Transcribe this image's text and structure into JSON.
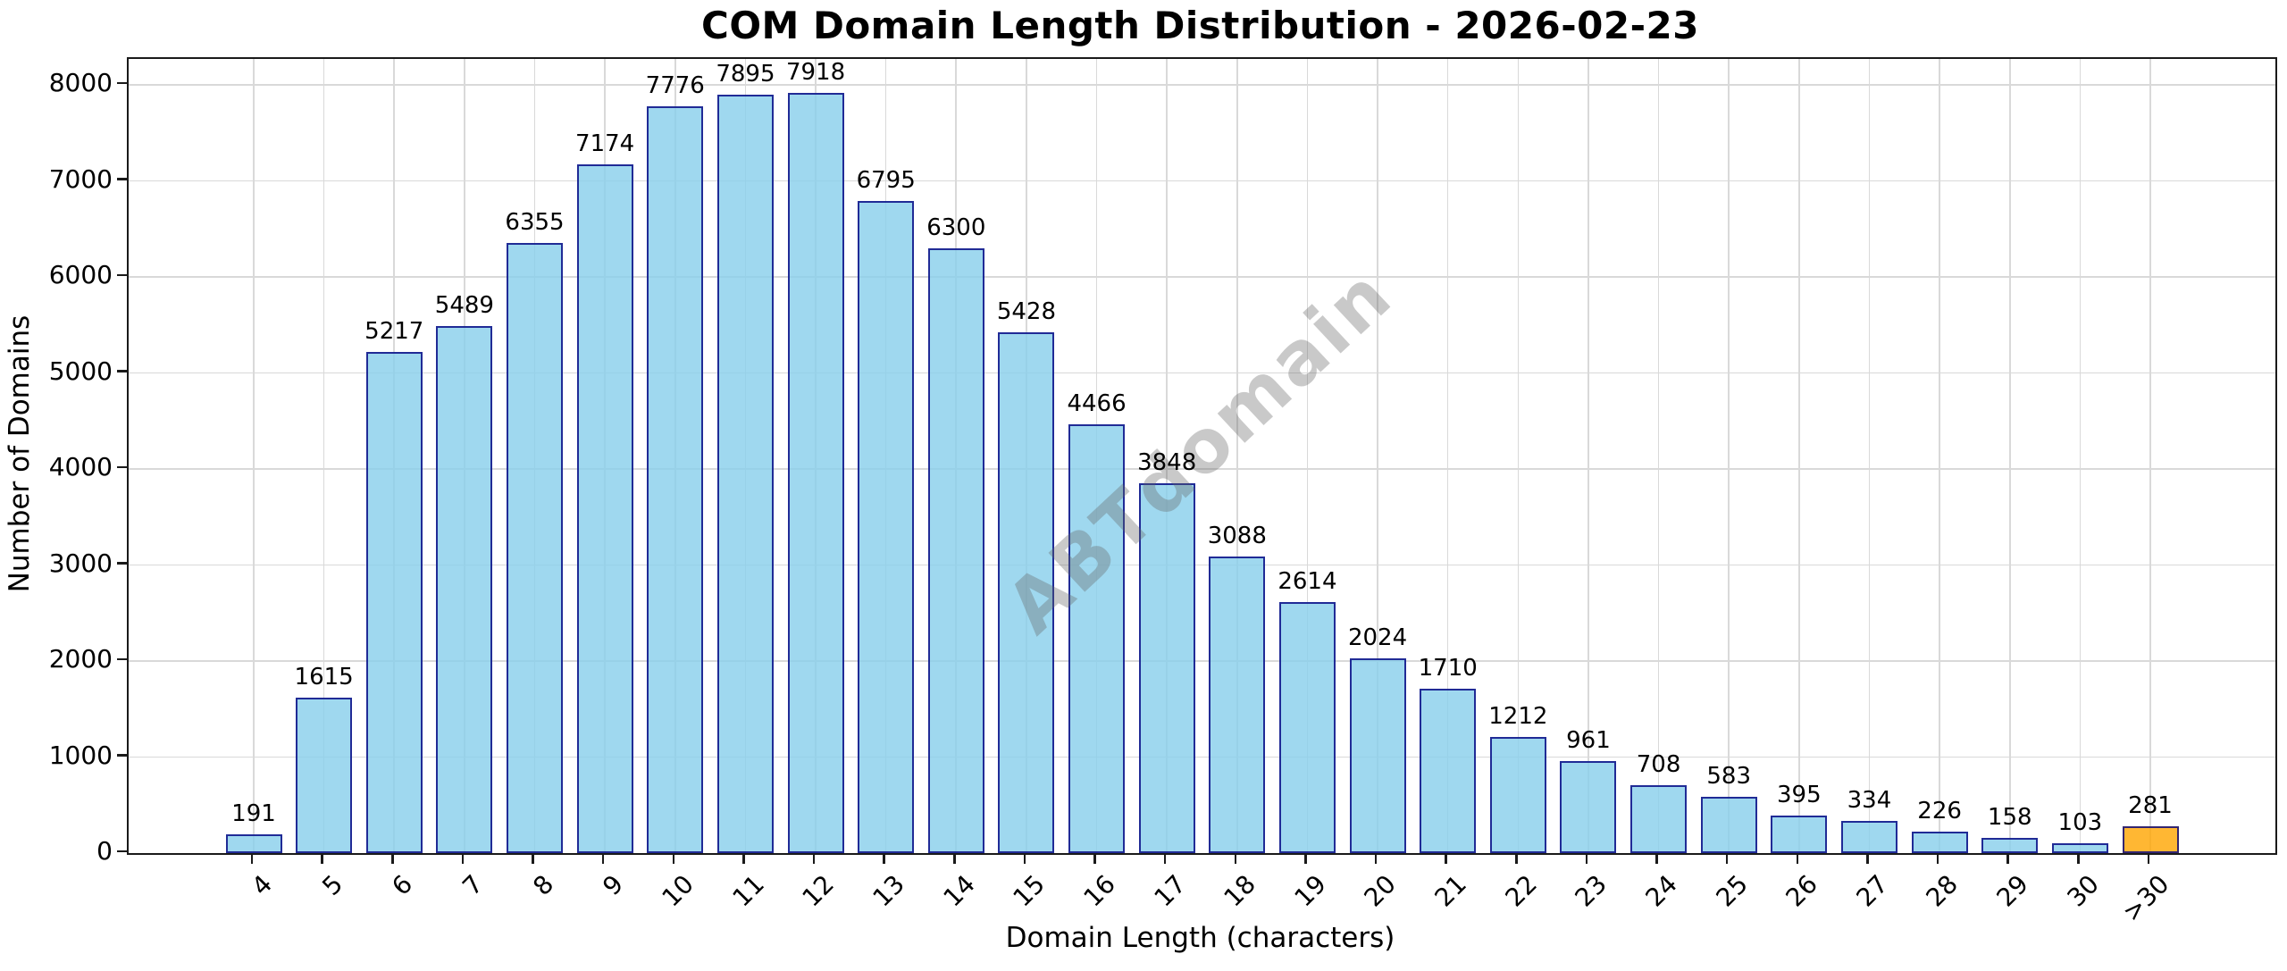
{
  "title": "COM Domain Length Distribution - 2026-02-23",
  "watermark": "ABTdomain",
  "chart_data": {
    "type": "bar",
    "title": "COM Domain Length Distribution - 2026-02-23",
    "xlabel": "Domain Length (characters)",
    "ylabel": "Number of Domains",
    "categories": [
      "4",
      "5",
      "6",
      "7",
      "8",
      "9",
      "10",
      "11",
      "12",
      "13",
      "14",
      "15",
      "16",
      "17",
      "18",
      "19",
      "20",
      "21",
      "22",
      "23",
      "24",
      "25",
      "26",
      "27",
      "28",
      "29",
      "30",
      ">30"
    ],
    "values": [
      191,
      1615,
      5217,
      5489,
      6355,
      7174,
      7776,
      7895,
      7918,
      6795,
      6300,
      5428,
      4466,
      3848,
      3088,
      2614,
      2024,
      1710,
      1212,
      961,
      708,
      583,
      395,
      334,
      226,
      158,
      103,
      281
    ],
    "bar_value_labels_shown": true,
    "highlight_index": 27,
    "yticks": [
      0,
      1000,
      2000,
      3000,
      4000,
      5000,
      6000,
      7000,
      8000
    ],
    "ylim": [
      0,
      8270
    ],
    "grid": true,
    "legend": "none",
    "xtick_rotation_deg": 45,
    "colors": {
      "bar_fill": "#87CEEB",
      "bar_edge": "#000080",
      "highlight_fill": "#FFA500",
      "bar_alpha": 0.8,
      "grid": "#D9D9D9",
      "spine": "#1A1A1A",
      "watermark": "#646464",
      "text": "#000000"
    }
  }
}
